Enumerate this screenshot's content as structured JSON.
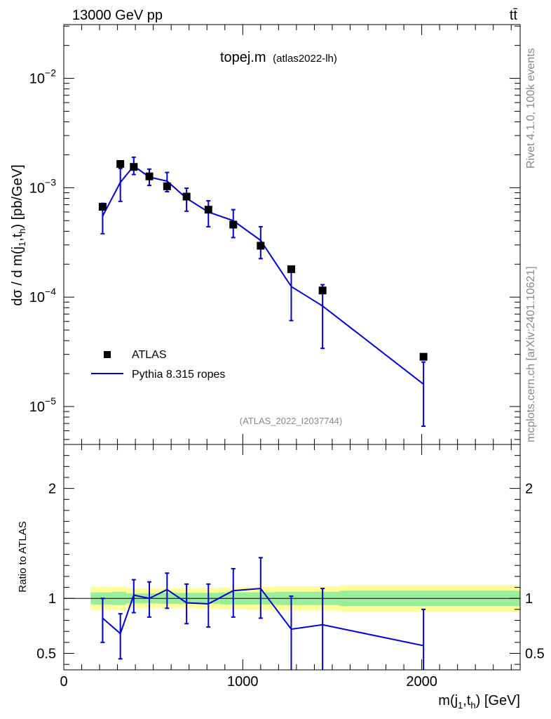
{
  "header": {
    "left": "13000 GeV pp",
    "right": "tt̄"
  },
  "side_labels": {
    "rivet": "Rivet 4.1.0,  100k events",
    "mcplots": "mcplots.cern.ch [arXiv:2401.10621]"
  },
  "chart_data": [
    {
      "type": "scatter",
      "panel": "main",
      "title": "topej.m",
      "subtitle": "(atlas2022-lh)",
      "watermark": "(ATLAS_2022_I2037744)",
      "ylabel": "dσ / d m(j1,th) [pb/GeV]",
      "yscale": "log",
      "xlim": [
        0,
        2550
      ],
      "ylim": [
        4.5e-06,
        0.031
      ],
      "y_ticks": [
        {
          "value": 1e-05,
          "base": "10",
          "exp": "−5"
        },
        {
          "value": 0.0001,
          "base": "10",
          "exp": "−4"
        },
        {
          "value": 0.001,
          "base": "10",
          "exp": "−3"
        },
        {
          "value": 0.01,
          "base": "10",
          "exp": "−2"
        }
      ],
      "legend": [
        {
          "label": "ATLAS",
          "marker": "square",
          "color": "#000000"
        },
        {
          "label": "Pythia 8.315 ropes",
          "marker": "line",
          "color": "#0000dd"
        }
      ],
      "legend_position": "bottom-left",
      "series": [
        {
          "name": "ATLAS",
          "x": [
            217,
            316,
            391,
            478,
            577,
            686,
            808,
            947,
            1100,
            1271,
            1446,
            2010
          ],
          "y": [
            0.00067,
            0.00165,
            0.00155,
            0.00127,
            0.00103,
            0.00083,
            0.00063,
            0.00046,
            0.000295,
            0.00018,
            0.000115,
            2.85e-05
          ]
        },
        {
          "name": "Pythia 8.315 ropes",
          "x": [
            217,
            316,
            391,
            478,
            577,
            686,
            808,
            947,
            1100,
            1271,
            1446,
            2010
          ],
          "y": [
            0.00055,
            0.00112,
            0.00158,
            0.00125,
            0.00115,
            0.0008,
            0.0006,
            0.0005,
            0.00033,
            0.000125,
            8.3e-05,
            1.6e-05
          ],
          "yerr_low": [
            0.00038,
            0.00075,
            0.00132,
            0.00105,
            0.00092,
            0.00061,
            0.00044,
            0.00035,
            0.000225,
            6.1e-05,
            3.4e-05,
            6.6e-06
          ],
          "yerr_high": [
            0.00072,
            0.0015,
            0.0019,
            0.00148,
            0.00138,
            0.00099,
            0.00076,
            0.00063,
            0.00044,
            0.000188,
            0.00013,
            2.55e-05
          ]
        }
      ]
    },
    {
      "type": "line",
      "panel": "ratio",
      "ylabel": "Ratio to ATLAS",
      "xlabel": "m(j1,th) [GeV]",
      "xlim": [
        0,
        2550
      ],
      "ylim": [
        0.35,
        2.4
      ],
      "y_ticks": [
        {
          "value": 0.5,
          "label": "0.5"
        },
        {
          "value": 1,
          "label": "1"
        },
        {
          "value": 2,
          "label": "2"
        }
      ],
      "x_ticks": [
        {
          "value": 0,
          "label": "0"
        },
        {
          "value": 1000,
          "label": "1000"
        },
        {
          "value": 2000,
          "label": "2000"
        }
      ],
      "bands": {
        "edges": [
          150,
          270,
          350,
          430,
          530,
          630,
          740,
          870,
          1020,
          1180,
          1360,
          1540,
          2550
        ],
        "inner": [
          0.055,
          0.06,
          0.045,
          0.045,
          0.05,
          0.05,
          0.05,
          0.055,
          0.055,
          0.06,
          0.06,
          0.07
        ],
        "outer": [
          0.105,
          0.105,
          0.09,
          0.09,
          0.09,
          0.09,
          0.095,
          0.1,
          0.105,
          0.11,
          0.11,
          0.12
        ],
        "inner_color": "#99ee99",
        "outer_color": "#ffff99"
      },
      "series": [
        {
          "name": "Pythia 8.315 ropes",
          "color": "#0000dd",
          "x": [
            217,
            316,
            391,
            478,
            577,
            686,
            808,
            947,
            1100,
            1271,
            1446,
            2010
          ],
          "y": [
            0.82,
            0.68,
            1.03,
            1.0,
            1.08,
            0.96,
            0.95,
            1.07,
            1.09,
            0.72,
            0.76,
            0.57
          ],
          "yerr_low": [
            0.6,
            0.45,
            0.87,
            0.83,
            0.91,
            0.77,
            0.74,
            0.83,
            0.82,
            0.3,
            0.3,
            0.3
          ],
          "yerr_high": [
            1.0,
            0.86,
            1.17,
            1.15,
            1.23,
            1.13,
            1.13,
            1.27,
            1.37,
            1.02,
            1.09,
            0.9
          ]
        }
      ]
    }
  ]
}
